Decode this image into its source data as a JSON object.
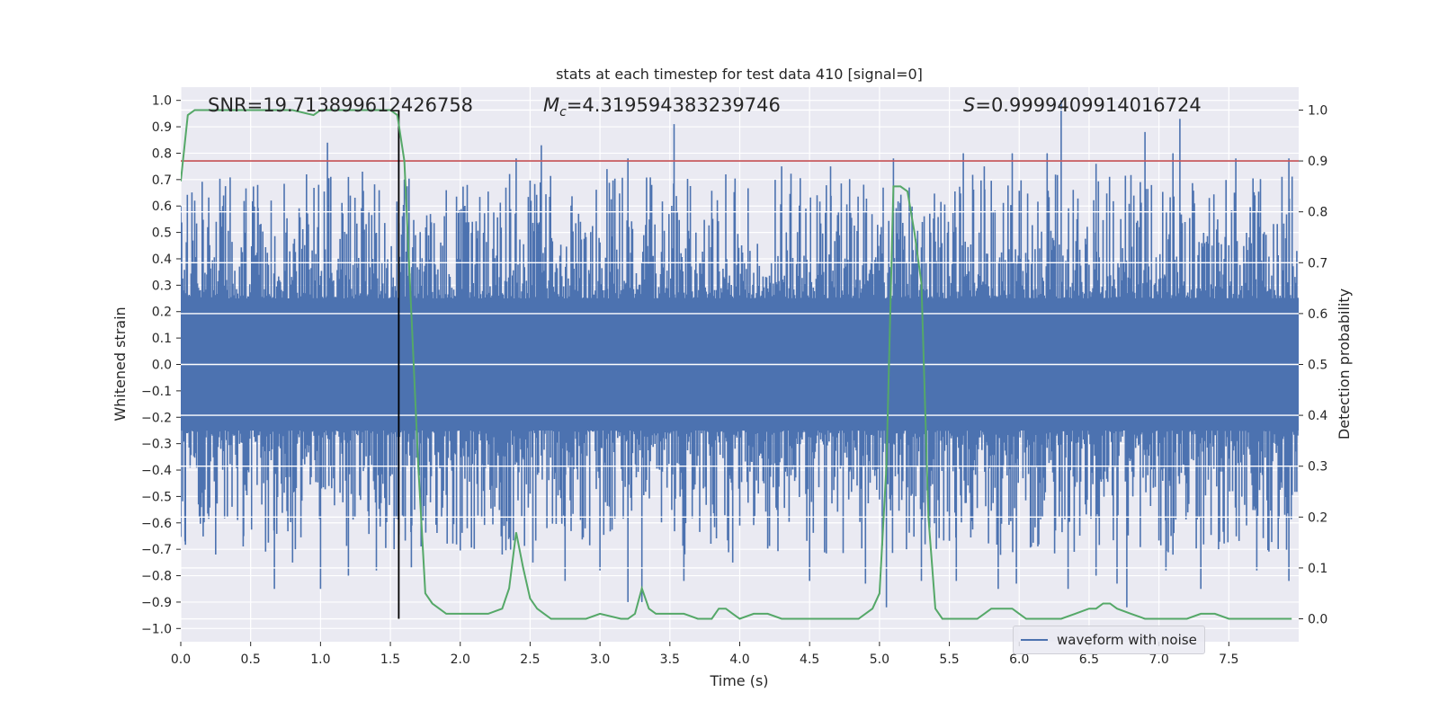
{
  "chart_data": {
    "type": "line",
    "title": "stats at each timestep for test data 410 [signal=0]",
    "xlabel": "Time (s)",
    "ylabel": "Whitened strain",
    "y2label": "Detection probability",
    "xlim": [
      0.0,
      8.0
    ],
    "ylim": [
      -1.05,
      1.05
    ],
    "y2lim": [
      -0.045,
      1.045
    ],
    "x_ticks": [
      "0.0",
      "0.5",
      "1.0",
      "1.5",
      "2.0",
      "2.5",
      "3.0",
      "3.5",
      "4.0",
      "4.5",
      "5.0",
      "5.5",
      "6.0",
      "6.5",
      "7.0",
      "7.5"
    ],
    "y_ticks": [
      "1.0",
      "0.9",
      "0.8",
      "0.7",
      "0.6",
      "0.5",
      "0.4",
      "0.3",
      "0.2",
      "0.1",
      "0.0",
      "−0.1",
      "−0.2",
      "−0.3",
      "−0.4",
      "−0.5",
      "−0.6",
      "−0.7",
      "−0.8",
      "−0.9",
      "−1.0"
    ],
    "y2_ticks": [
      "1.0",
      "0.9",
      "0.8",
      "0.7",
      "0.6",
      "0.5",
      "0.4",
      "0.3",
      "0.2",
      "0.1",
      "0.0"
    ],
    "annotations": {
      "snr": "SNR=19.713899612426758",
      "mc": "M_c=4.319594383239746",
      "mc_symbol": "M",
      "mc_sub": "c",
      "mc_value": "=4.319594383239746",
      "s_symbol": "S",
      "s_value": "=0.9999409914016724"
    },
    "threshold": 0.9,
    "marker_time": 1.56,
    "grid": true,
    "legend": {
      "placement": "lower-right",
      "label": "waveform with noise"
    },
    "series": [
      {
        "name": "waveform with noise",
        "color": "#4c72b0",
        "band": 0.25,
        "envelope": 0.7,
        "peaks_up": [
          [
            0.0,
            0.6
          ],
          [
            0.1,
            0.62
          ],
          [
            0.3,
            0.6
          ],
          [
            0.55,
            0.68
          ],
          [
            0.9,
            0.72
          ],
          [
            1.05,
            0.84
          ],
          [
            1.3,
            0.73
          ],
          [
            1.42,
            0.66
          ],
          [
            1.6,
            0.7
          ],
          [
            2.05,
            0.68
          ],
          [
            2.4,
            0.78
          ],
          [
            2.58,
            0.83
          ],
          [
            3.05,
            0.74
          ],
          [
            3.2,
            0.78
          ],
          [
            3.37,
            0.68
          ],
          [
            3.53,
            0.91
          ],
          [
            3.9,
            0.72
          ],
          [
            4.3,
            0.75
          ],
          [
            4.65,
            0.75
          ],
          [
            5.1,
            0.78
          ],
          [
            5.6,
            0.8
          ],
          [
            5.75,
            0.75
          ],
          [
            5.95,
            0.8
          ],
          [
            6.2,
            0.8
          ],
          [
            6.3,
            1.0
          ],
          [
            6.55,
            0.76
          ],
          [
            6.9,
            0.88
          ],
          [
            7.1,
            0.8
          ],
          [
            7.15,
            0.93
          ],
          [
            7.55,
            0.78
          ],
          [
            7.93,
            0.78
          ]
        ],
        "peaks_down": [
          [
            0.03,
            -0.67
          ],
          [
            0.25,
            -0.72
          ],
          [
            0.45,
            -0.65
          ],
          [
            0.67,
            -0.85
          ],
          [
            0.8,
            -0.75
          ],
          [
            1.0,
            -0.85
          ],
          [
            1.2,
            -0.8
          ],
          [
            1.4,
            -0.78
          ],
          [
            1.65,
            -0.77
          ],
          [
            2.05,
            -0.62
          ],
          [
            2.3,
            -0.72
          ],
          [
            2.52,
            -0.75
          ],
          [
            2.75,
            -0.82
          ],
          [
            3.0,
            -0.78
          ],
          [
            3.2,
            -0.9
          ],
          [
            3.3,
            -0.9
          ],
          [
            3.6,
            -0.82
          ],
          [
            3.95,
            -0.75
          ],
          [
            4.5,
            -0.82
          ],
          [
            4.9,
            -0.83
          ],
          [
            5.05,
            -0.92
          ],
          [
            5.3,
            -0.82
          ],
          [
            5.55,
            -0.82
          ],
          [
            5.85,
            -0.85
          ],
          [
            5.98,
            -0.83
          ],
          [
            6.35,
            -0.85
          ],
          [
            6.55,
            -0.8
          ],
          [
            6.7,
            -0.83
          ],
          [
            6.77,
            -0.92
          ],
          [
            7.05,
            -0.78
          ],
          [
            7.3,
            -0.85
          ],
          [
            7.7,
            -0.78
          ],
          [
            7.93,
            -0.82
          ]
        ]
      },
      {
        "name": "",
        "color": "#55a868",
        "axis": "right",
        "x": [
          0.0,
          0.05,
          0.1,
          0.2,
          0.4,
          0.6,
          0.8,
          0.95,
          1.0,
          1.2,
          1.4,
          1.5,
          1.55,
          1.6,
          1.65,
          1.7,
          1.75,
          1.8,
          1.85,
          1.9,
          2.0,
          2.1,
          2.2,
          2.3,
          2.35,
          2.4,
          2.45,
          2.5,
          2.55,
          2.6,
          2.65,
          2.75,
          2.9,
          3.0,
          3.15,
          3.2,
          3.25,
          3.3,
          3.35,
          3.4,
          3.5,
          3.6,
          3.7,
          3.8,
          3.85,
          3.9,
          3.95,
          4.0,
          4.1,
          4.2,
          4.3,
          4.5,
          4.7,
          4.85,
          4.95,
          5.0,
          5.05,
          5.1,
          5.15,
          5.2,
          5.25,
          5.3,
          5.35,
          5.4,
          5.45,
          5.5,
          5.6,
          5.7,
          5.75,
          5.8,
          5.85,
          5.9,
          5.95,
          6.0,
          6.05,
          6.1,
          6.2,
          6.3,
          6.4,
          6.5,
          6.55,
          6.6,
          6.65,
          6.7,
          6.8,
          6.9,
          7.0,
          7.2,
          7.3,
          7.4,
          7.5,
          7.6,
          7.7,
          7.8,
          7.9,
          7.95
        ],
        "values": [
          0.86,
          0.99,
          1.0,
          1.0,
          1.0,
          1.0,
          1.0,
          0.99,
          1.0,
          1.0,
          1.0,
          1.0,
          0.99,
          0.9,
          0.6,
          0.3,
          0.05,
          0.03,
          0.02,
          0.01,
          0.01,
          0.01,
          0.01,
          0.02,
          0.06,
          0.17,
          0.1,
          0.04,
          0.02,
          0.01,
          0.0,
          0.0,
          0.0,
          0.01,
          0.0,
          0.0,
          0.01,
          0.06,
          0.02,
          0.01,
          0.01,
          0.01,
          0.0,
          0.0,
          0.02,
          0.02,
          0.01,
          0.0,
          0.01,
          0.01,
          0.0,
          0.0,
          0.0,
          0.0,
          0.02,
          0.05,
          0.3,
          0.85,
          0.85,
          0.84,
          0.76,
          0.66,
          0.2,
          0.02,
          0.0,
          0.0,
          0.0,
          0.0,
          0.01,
          0.02,
          0.02,
          0.02,
          0.02,
          0.01,
          0.0,
          0.0,
          0.0,
          0.0,
          0.01,
          0.02,
          0.02,
          0.03,
          0.03,
          0.02,
          0.01,
          0.0,
          0.0,
          0.0,
          0.01,
          0.01,
          0.0,
          0.0,
          0.0,
          0.0,
          0.0,
          0.0
        ]
      }
    ]
  }
}
